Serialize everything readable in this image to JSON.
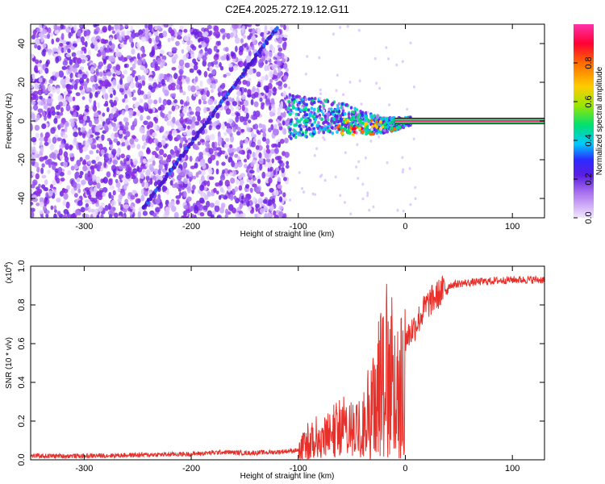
{
  "title": "C2E4.2025.272.19.12.G11",
  "colors": {
    "signal_line": "#e8302a",
    "background": "#ffffff",
    "axis": "#000000"
  },
  "chart_data": [
    {
      "type": "heatmap",
      "title": "C2E4.2025.272.19.12.G11",
      "xlabel": "Height of straight line (km)",
      "ylabel": "Frequency (Hz)",
      "xlim": [
        -350,
        130
      ],
      "ylim": [
        -50,
        50
      ],
      "xticks": [
        -300,
        -200,
        -100,
        0,
        100
      ],
      "yticks": [
        -40,
        -20,
        0,
        20,
        40
      ],
      "colorbar": {
        "label": "Normalized spectral amplitude",
        "range": [
          0,
          1
        ],
        "ticks": [
          "0.0",
          "0.2",
          "0.4",
          "0.6",
          "0.8"
        ],
        "colors": [
          "#f2e6ff",
          "#8a2be2",
          "#2b2bff",
          "#00c8ff",
          "#00e070",
          "#9ae600",
          "#ffcc00",
          "#ff6a00",
          "#ff0033",
          "#ff33aa"
        ]
      },
      "features": [
        {
          "name": "diagonal trace",
          "x_range": [
            -245,
            -120
          ],
          "y_range": [
            -45,
            48
          ]
        },
        {
          "name": "noise region",
          "x_range": [
            -350,
            -110
          ],
          "y_range": [
            -50,
            50
          ]
        },
        {
          "name": "signal cluster",
          "x_range": [
            -110,
            5
          ],
          "y_range": [
            -12,
            10
          ]
        },
        {
          "name": "constant tone",
          "x_range": [
            -10,
            130
          ],
          "y_value": 0
        }
      ]
    },
    {
      "type": "line",
      "xlabel": "Height of straight line (km)",
      "ylabel": "SNR (10 * v/v)",
      "y_multiplier": "(x10",
      "y_multiplier_exponent": "4",
      "y_multiplier_close": ")",
      "xlim": [
        -350,
        130
      ],
      "ylim": [
        0,
        1.0
      ],
      "xticks": [
        -300,
        -200,
        -100,
        0,
        100
      ],
      "yticks": [
        "0.0",
        "0.2",
        "0.4",
        "0.6",
        "0.8",
        "1.0"
      ],
      "series": [
        {
          "name": "SNR",
          "x": [
            -350,
            -300,
            -250,
            -200,
            -170,
            -150,
            -120,
            -100,
            -95,
            -90,
            -80,
            -70,
            -60,
            -50,
            -40,
            -30,
            -25,
            -20,
            -15,
            -10,
            -5,
            0,
            10,
            20,
            30,
            40,
            50,
            70,
            100,
            130
          ],
          "values": [
            0.02,
            0.02,
            0.025,
            0.03,
            0.04,
            0.035,
            0.04,
            0.05,
            0.12,
            0.15,
            0.18,
            0.2,
            0.25,
            0.22,
            0.3,
            0.45,
            0.55,
            0.6,
            0.75,
            0.65,
            0.6,
            0.62,
            0.7,
            0.8,
            0.85,
            0.9,
            0.91,
            0.92,
            0.93,
            0.93
          ]
        }
      ]
    }
  ]
}
